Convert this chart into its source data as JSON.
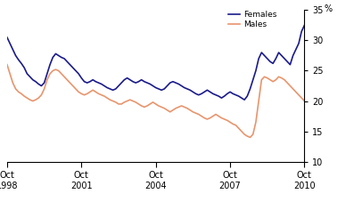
{
  "title": "",
  "ylabel_right": "%",
  "ylim": [
    10,
    35
  ],
  "yticks": [
    10,
    15,
    20,
    25,
    30,
    35
  ],
  "xtick_labels": [
    "Oct\n1998",
    "Oct\n2001",
    "Oct\n2004",
    "Oct\n2007",
    "Oct\n2010"
  ],
  "females_color": "#1a1a8c",
  "males_color": "#E8956D",
  "legend_labels": [
    "Females",
    "Males"
  ],
  "females_data": [
    30.5,
    29.5,
    28.5,
    27.5,
    26.8,
    26.2,
    25.5,
    24.5,
    24.0,
    23.5,
    23.2,
    22.8,
    22.5,
    23.0,
    24.5,
    26.0,
    27.2,
    27.8,
    27.5,
    27.2,
    27.0,
    26.5,
    26.0,
    25.5,
    25.0,
    24.5,
    23.8,
    23.2,
    23.0,
    23.2,
    23.5,
    23.2,
    23.0,
    22.8,
    22.5,
    22.2,
    22.0,
    21.8,
    22.0,
    22.5,
    23.0,
    23.5,
    23.8,
    23.5,
    23.2,
    23.0,
    23.2,
    23.5,
    23.2,
    23.0,
    22.8,
    22.5,
    22.2,
    22.0,
    21.8,
    22.0,
    22.5,
    23.0,
    23.2,
    23.0,
    22.8,
    22.5,
    22.2,
    22.0,
    21.8,
    21.5,
    21.2,
    21.0,
    21.2,
    21.5,
    21.8,
    21.5,
    21.2,
    21.0,
    20.8,
    20.5,
    20.8,
    21.2,
    21.5,
    21.2,
    21.0,
    20.8,
    20.5,
    20.2,
    20.8,
    22.0,
    23.5,
    25.0,
    27.0,
    28.0,
    27.5,
    27.0,
    26.5,
    26.2,
    27.0,
    28.0,
    27.5,
    27.0,
    26.5,
    26.0,
    27.5,
    28.5,
    29.5,
    31.5,
    32.5
  ],
  "males_data": [
    26.0,
    24.5,
    23.0,
    22.0,
    21.5,
    21.2,
    20.8,
    20.5,
    20.2,
    20.0,
    20.2,
    20.5,
    21.0,
    22.0,
    23.5,
    24.5,
    25.0,
    25.2,
    25.0,
    24.5,
    24.0,
    23.5,
    23.0,
    22.5,
    22.0,
    21.5,
    21.2,
    21.0,
    21.2,
    21.5,
    21.8,
    21.5,
    21.2,
    21.0,
    20.8,
    20.5,
    20.2,
    20.0,
    19.8,
    19.5,
    19.5,
    19.8,
    20.0,
    20.2,
    20.0,
    19.8,
    19.5,
    19.2,
    19.0,
    19.2,
    19.5,
    19.8,
    19.5,
    19.2,
    19.0,
    18.8,
    18.5,
    18.2,
    18.5,
    18.8,
    19.0,
    19.2,
    19.0,
    18.8,
    18.5,
    18.2,
    18.0,
    17.8,
    17.5,
    17.2,
    17.0,
    17.2,
    17.5,
    17.8,
    17.5,
    17.2,
    17.0,
    16.8,
    16.5,
    16.2,
    16.0,
    15.5,
    15.0,
    14.5,
    14.2,
    14.0,
    14.5,
    16.5,
    20.0,
    23.5,
    24.0,
    23.8,
    23.5,
    23.2,
    23.5,
    24.0,
    23.8,
    23.5,
    23.0,
    22.5,
    22.0,
    21.5,
    21.0,
    20.5,
    20.0
  ]
}
